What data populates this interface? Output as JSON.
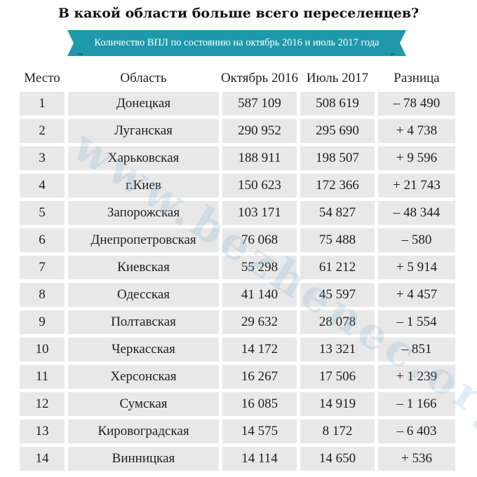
{
  "title": "В какой области больше всего переселенцев?",
  "subtitle": "Количество ВПЛ по состоянию на октябрь 2016 и июль 2017 года",
  "colors": {
    "ribbon": "#1f98ab",
    "ribbon_fold": "#147080",
    "cell_background": "#e8e8e8",
    "watermark": "#78aac8"
  },
  "watermark": "www.bezhenec.org",
  "table": {
    "headers": {
      "place": "Место",
      "region": "Область",
      "october_2016": "Октябрь 2016",
      "july_2017": "Июль 2017",
      "difference": "Разница"
    },
    "rows": [
      {
        "place": "1",
        "region": "Донецкая",
        "october_2016": "587 109",
        "july_2017": "508 619",
        "difference": "– 78 490"
      },
      {
        "place": "2",
        "region": "Луганская",
        "october_2016": "290 952",
        "july_2017": "295 690",
        "difference": "+ 4 738"
      },
      {
        "place": "3",
        "region": "Харьковская",
        "october_2016": "188 911",
        "july_2017": "198 507",
        "difference": "+ 9 596"
      },
      {
        "place": "4",
        "region": "г.Киев",
        "october_2016": "150 623",
        "july_2017": "172 366",
        "difference": "+ 21 743"
      },
      {
        "place": "5",
        "region": "Запорожская",
        "october_2016": "103 171",
        "july_2017": "54 827",
        "difference": "– 48 344"
      },
      {
        "place": "6",
        "region": "Днепропетровская",
        "october_2016": "76 068",
        "july_2017": "75 488",
        "difference": "– 580"
      },
      {
        "place": "7",
        "region": "Киевская",
        "october_2016": "55 298",
        "july_2017": "61 212",
        "difference": "+ 5 914"
      },
      {
        "place": "8",
        "region": "Одесская",
        "october_2016": "41 140",
        "july_2017": "45 597",
        "difference": "+ 4 457"
      },
      {
        "place": "9",
        "region": "Полтавская",
        "october_2016": "29 632",
        "july_2017": "28 078",
        "difference": "– 1 554"
      },
      {
        "place": "10",
        "region": "Черкасская",
        "october_2016": "14 172",
        "july_2017": "13 321",
        "difference": "– 851"
      },
      {
        "place": "11",
        "region": "Херсонская",
        "october_2016": "16 267",
        "july_2017": "17 506",
        "difference": "+ 1 239"
      },
      {
        "place": "12",
        "region": "Сумская",
        "october_2016": "16 085",
        "july_2017": "14 919",
        "difference": "– 1 166"
      },
      {
        "place": "13",
        "region": "Кировоградская",
        "october_2016": "14 575",
        "july_2017": "8 172",
        "difference": "– 6 403"
      },
      {
        "place": "14",
        "region": "Винницкая",
        "october_2016": "14 114",
        "july_2017": "14 650",
        "difference": "+ 536"
      }
    ]
  }
}
